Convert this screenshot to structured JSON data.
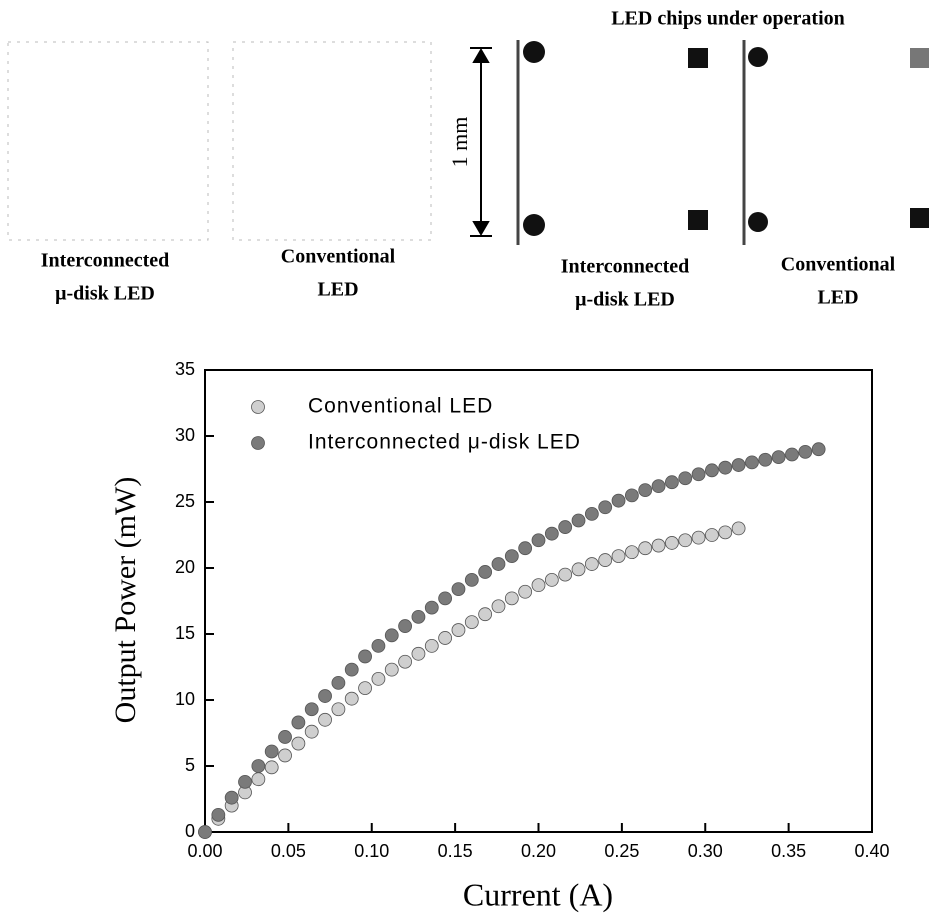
{
  "figure": {
    "header": "LED chips under operation",
    "scale_label": "1 mm",
    "panels": [
      {
        "label_lines": [
          "Interconnected",
          "μ-disk LED"
        ]
      },
      {
        "label_lines": [
          "Conventional",
          "LED"
        ]
      },
      {
        "label_lines": [
          "Interconnected",
          "μ-disk LED"
        ]
      },
      {
        "label_lines": [
          "Conventional",
          "LED"
        ]
      }
    ]
  },
  "chart_data": {
    "type": "scatter",
    "x_label": "Current (A)",
    "y_label": "Output Power (mW)",
    "xlim": [
      0,
      0.4
    ],
    "ylim": [
      0,
      35
    ],
    "xticks": [
      {
        "value": 0,
        "label": "0.00"
      },
      {
        "value": 0.05,
        "label": "0.05"
      },
      {
        "value": 0.1,
        "label": "0.10"
      },
      {
        "value": 0.15,
        "label": "0.15"
      },
      {
        "value": 0.2,
        "label": "0.20"
      },
      {
        "value": 0.25,
        "label": "0.25"
      },
      {
        "value": 0.3,
        "label": "0.30"
      },
      {
        "value": 0.35,
        "label": "0.35"
      },
      {
        "value": 0.4,
        "label": "0.40"
      }
    ],
    "yticks": [
      0,
      5,
      10,
      15,
      20,
      25,
      30,
      35
    ],
    "legend": "upper left",
    "series": [
      {
        "name": "Conventional LED",
        "color": "#cfcfcf",
        "x": [
          0,
          0.008,
          0.016,
          0.024,
          0.032,
          0.04,
          0.048,
          0.056,
          0.064,
          0.072,
          0.08,
          0.088,
          0.096,
          0.104,
          0.112,
          0.12,
          0.128,
          0.136,
          0.144,
          0.152,
          0.16,
          0.168,
          0.176,
          0.184,
          0.192,
          0.2,
          0.208,
          0.216,
          0.224,
          0.232,
          0.24,
          0.248,
          0.256,
          0.264,
          0.272,
          0.28,
          0.288,
          0.296,
          0.304,
          0.312,
          0.32
        ],
        "values": [
          0,
          1.0,
          2.0,
          3.0,
          4.0,
          4.9,
          5.8,
          6.7,
          7.6,
          8.5,
          9.3,
          10.1,
          10.9,
          11.6,
          12.3,
          12.9,
          13.5,
          14.1,
          14.7,
          15.3,
          15.9,
          16.5,
          17.1,
          17.7,
          18.2,
          18.7,
          19.1,
          19.5,
          19.9,
          20.3,
          20.6,
          20.9,
          21.2,
          21.5,
          21.7,
          21.9,
          22.1,
          22.3,
          22.5,
          22.7,
          23.0
        ]
      },
      {
        "name": "Interconnected μ-disk LED",
        "color": "#7a7a7a",
        "x": [
          0,
          0.008,
          0.016,
          0.024,
          0.032,
          0.04,
          0.048,
          0.056,
          0.064,
          0.072,
          0.08,
          0.088,
          0.096,
          0.104,
          0.112,
          0.12,
          0.128,
          0.136,
          0.144,
          0.152,
          0.16,
          0.168,
          0.176,
          0.184,
          0.192,
          0.2,
          0.208,
          0.216,
          0.224,
          0.232,
          0.24,
          0.248,
          0.256,
          0.264,
          0.272,
          0.28,
          0.288,
          0.296,
          0.304,
          0.312,
          0.32,
          0.328,
          0.336,
          0.344,
          0.352,
          0.36,
          0.368
        ],
        "values": [
          0,
          1.3,
          2.6,
          3.8,
          5.0,
          6.1,
          7.2,
          8.3,
          9.3,
          10.3,
          11.3,
          12.3,
          13.3,
          14.1,
          14.9,
          15.6,
          16.3,
          17.0,
          17.7,
          18.4,
          19.1,
          19.7,
          20.3,
          20.9,
          21.5,
          22.1,
          22.6,
          23.1,
          23.6,
          24.1,
          24.6,
          25.1,
          25.5,
          25.9,
          26.2,
          26.5,
          26.8,
          27.1,
          27.4,
          27.6,
          27.8,
          28.0,
          28.2,
          28.4,
          28.6,
          28.8,
          29.0
        ]
      }
    ]
  }
}
